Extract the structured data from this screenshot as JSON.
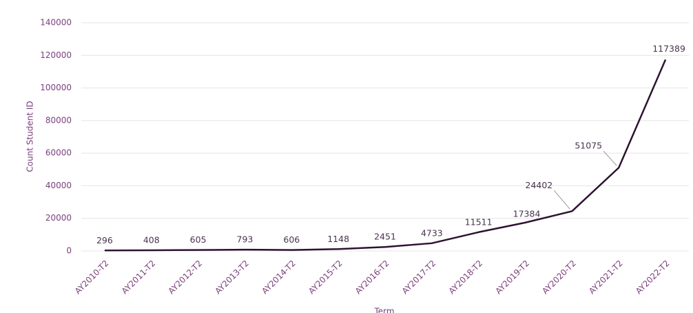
{
  "chart_data": {
    "type": "line",
    "x_label": "Term",
    "y_label": "Count Student ID",
    "categories": [
      "AY2010-T2",
      "AY2011-T2",
      "AY2012-T2",
      "AY2013-T2",
      "AY2014-T2",
      "AY2015-T2",
      "AY2016-T2",
      "AY2017-T2",
      "AY2018-T2",
      "AY2019-T2",
      "AY2020-T2",
      "AY2021-T2",
      "AY2022-T2"
    ],
    "values": [
      296,
      408,
      605,
      793,
      606,
      1148,
      2451,
      4733,
      11511,
      17384,
      24402,
      51075,
      117389
    ],
    "color": "#2e1232",
    "ylim": [
      0,
      140000
    ],
    "yticks": [
      0,
      20000,
      40000,
      60000,
      80000,
      100000,
      120000,
      140000
    ],
    "grid": true
  }
}
